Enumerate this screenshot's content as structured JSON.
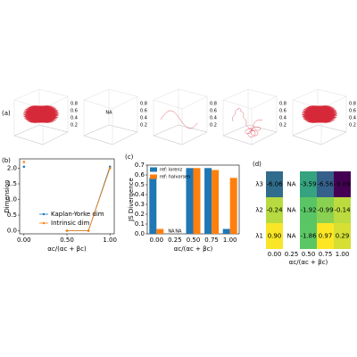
{
  "chart_data": [
    {
      "type": "attractor3d",
      "panel_label": "(a)",
      "annotations": [
        "NA"
      ],
      "zticks": [
        0.2,
        0.4,
        0.6,
        0.8
      ],
      "color": "#d62839"
    },
    {
      "type": "line",
      "panel_label": "(b)",
      "ylabel": "Dimension",
      "xlabel": "αc/(αc + βc)",
      "x": [
        0,
        0.25,
        0.5,
        0.75,
        1.0
      ],
      "series": [
        {
          "name": "Kaplan-Yorke dim",
          "color": "#1f77b4",
          "values": [
            2.05,
            null,
            0,
            0,
            2.05
          ]
        },
        {
          "name": "Intrinsic dim",
          "color": "#ff7f0e",
          "values": [
            2.2,
            null,
            0,
            0,
            2.0
          ]
        }
      ],
      "xlim": [
        -0.05,
        1.05
      ],
      "ylim": [
        -0.1,
        2.3
      ],
      "xticks": [
        {
          "value": 0,
          "label": "0.00"
        },
        {
          "value": 0.5,
          "label": "0.50"
        },
        {
          "value": 1,
          "label": "1.00"
        }
      ],
      "yticks": [
        {
          "value": 0,
          "label": "0.0"
        },
        0.5,
        {
          "value": 1,
          "label": "1.0"
        },
        1.5,
        {
          "value": 2,
          "label": "2.0"
        }
      ],
      "legend": "lower right"
    },
    {
      "type": "bar",
      "panel_label": "(c)",
      "ylabel": "JS Divergence",
      "xlabel": "αc/(αc + βc)",
      "categories": [
        "0.00",
        "0.25",
        "0.50",
        "0.75",
        "1.00"
      ],
      "series": [
        {
          "name": "ref: lorenz",
          "color": "#1f77b4",
          "values": [
            0.57,
            null,
            0.67,
            0.67,
            0.05
          ],
          "value_labels": [
            null,
            "NA",
            null,
            null,
            null
          ]
        },
        {
          "name": "ref: halvorsen",
          "color": "#ff7f0e",
          "values": [
            0.05,
            null,
            0.67,
            0.65,
            0.57
          ],
          "value_labels": [
            null,
            "NA",
            null,
            null,
            null
          ]
        }
      ],
      "ylim": [
        0,
        0.7
      ],
      "yticks": [
        {
          "value": 0,
          "label": "0.0"
        },
        0.1,
        0.2,
        0.3,
        0.4,
        0.5,
        0.6,
        0.7
      ],
      "legend": "upper left"
    },
    {
      "type": "heatmap",
      "panel_label": "(d)",
      "xlabel": "αc/(αc + βc)",
      "categories": [
        "0.00",
        "0.25",
        "0.50",
        "0.75",
        "1.00"
      ],
      "rows": [
        "λ3",
        "λ2",
        "λ1"
      ],
      "values": [
        [
          -6.06,
          null,
          -3.59,
          -6.56,
          -9.89
        ],
        [
          -0.24,
          null,
          -1.92,
          -0.99,
          -0.14
        ],
        [
          0.9,
          null,
          -1.86,
          0.97,
          0.29
        ]
      ],
      "value_labels": [
        [
          "-6.06",
          "NA",
          "-3.59",
          "-6.56",
          "-9.89"
        ],
        [
          "-0.24",
          "NA",
          "-1.92",
          "-0.99",
          "-0.14"
        ],
        [
          "0.90",
          "NA",
          "-1.86",
          "0.97",
          "0.29"
        ]
      ],
      "colormap": "viridis"
    }
  ]
}
